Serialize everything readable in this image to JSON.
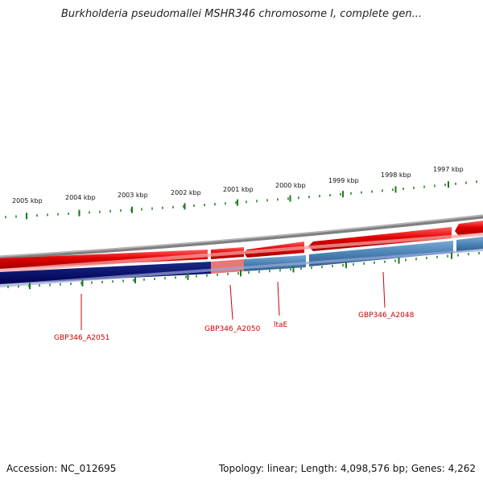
{
  "title": "Burkholderia pseudomallei MSHR346 chromosome I, complete gen...",
  "ruler": {
    "labels": [
      "2005 kbp",
      "2004 kbp",
      "2003 kbp",
      "2002 kbp",
      "2001 kbp",
      "2000 kbp",
      "1999 kbp",
      "1998 kbp",
      "1997 kbp"
    ]
  },
  "genes": [
    {
      "label": "GBP346_A2051"
    },
    {
      "label": "GBP346_A2050"
    },
    {
      "label": "ltaE"
    },
    {
      "label": "GBP346_A2048"
    }
  ],
  "colors": {
    "forward": "#e00000",
    "reverse_dark": "#000a6e",
    "reverse_light": "#4a82b4",
    "highlight": "#e87878",
    "backbone": "#808080",
    "ticks": "#1a7a1a",
    "labels": "#cc0000"
  },
  "footer": {
    "accession": "Accession: NC_012695",
    "summary": "Topology: linear; Length: 4,098,576 bp; Genes: 4,262"
  }
}
